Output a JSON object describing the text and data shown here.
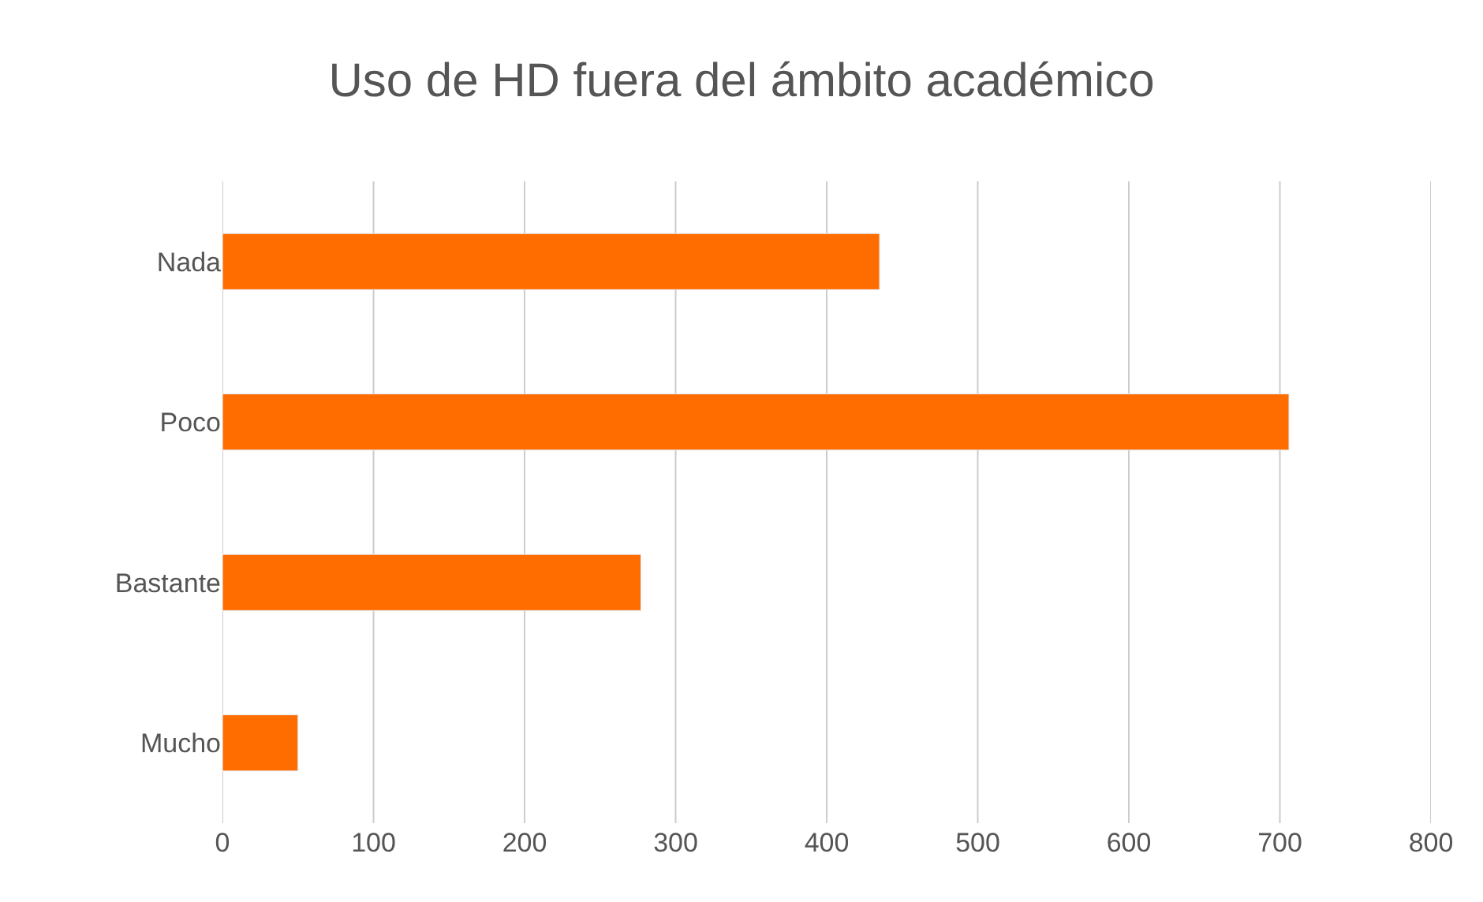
{
  "chart_data": {
    "type": "bar",
    "orientation": "horizontal",
    "title": "Uso de HD fuera del ámbito académico",
    "categories": [
      "Nada",
      "Poco",
      "Bastante",
      "Mucho"
    ],
    "values": [
      435,
      706,
      277,
      50
    ],
    "color": "#ff6d01",
    "xlim": [
      0,
      800
    ],
    "xticks": [
      0,
      100,
      200,
      300,
      400,
      500,
      600,
      700,
      800
    ],
    "grid": "x"
  }
}
